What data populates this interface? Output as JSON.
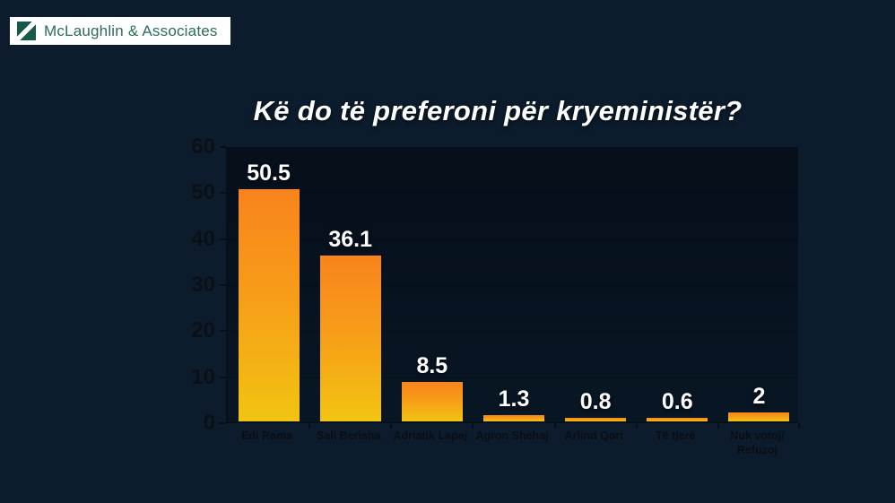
{
  "header": {
    "logo": {
      "text": "McLaughlin & Associates",
      "icon": "diagonal-slash-square-icon",
      "brand_color": "#17584a"
    }
  },
  "chart_data": {
    "type": "bar",
    "title": "Kë do të preferoni për kryeministër?",
    "categories": [
      "Edi Rama",
      "Sali Berisha",
      "Adriatik Lapaj",
      "Agron Shehaj",
      "Arlind Qori",
      "Të tjerë",
      "Nuk votoj/\nRefuzoj"
    ],
    "values": [
      50.5,
      36.1,
      8.5,
      1.3,
      0.8,
      0.6,
      2
    ],
    "value_labels": [
      "50.5",
      "36.1",
      "8.5",
      "1.3",
      "0.8",
      "0.6",
      "2"
    ],
    "xlabel": "",
    "ylabel": "",
    "ylim": [
      0,
      60
    ],
    "yticks": [
      0,
      10,
      20,
      30,
      40,
      50,
      60
    ],
    "legend": "none",
    "grid": "faint-horizontal",
    "colors": {
      "bar_gradient_top": "#f8841c",
      "bar_gradient_bottom": "#f2c411",
      "value_label": "#ffffff",
      "tick_label": "#0b1016",
      "title": "#ffffff",
      "background_base": "#0c1c2c"
    }
  }
}
